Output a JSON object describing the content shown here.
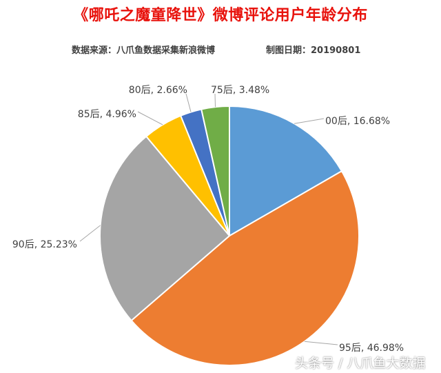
{
  "title": "《哪吒之魔童降世》微博评论用户年龄分布",
  "source_text": "数据来源：八爪鱼数据采集新浪微博",
  "date_text": "制图日期：20190801",
  "watermark": "头条号 / 八爪鱼大数据",
  "chart_data": {
    "type": "pie",
    "title": "《哪吒之魔童降世》微博评论用户年龄分布",
    "start_angle_deg": 0,
    "direction": "clockwise",
    "slices": [
      {
        "label": "00后",
        "value": 16.68,
        "display": "00后, 16.68%",
        "color": "#5b9bd5"
      },
      {
        "label": "95后",
        "value": 46.98,
        "display": "95后, 46.98%",
        "color": "#ed7d31"
      },
      {
        "label": "90后",
        "value": 25.23,
        "display": "90后, 25.23%",
        "color": "#a5a5a5"
      },
      {
        "label": "85后",
        "value": 4.96,
        "display": "85后, 4.96%",
        "color": "#ffc000"
      },
      {
        "label": "80后",
        "value": 2.66,
        "display": "80后, 2.66%",
        "color": "#4472c4"
      },
      {
        "label": "75后",
        "value": 3.48,
        "display": "75后, 3.48%",
        "color": "#70ad47"
      }
    ]
  }
}
